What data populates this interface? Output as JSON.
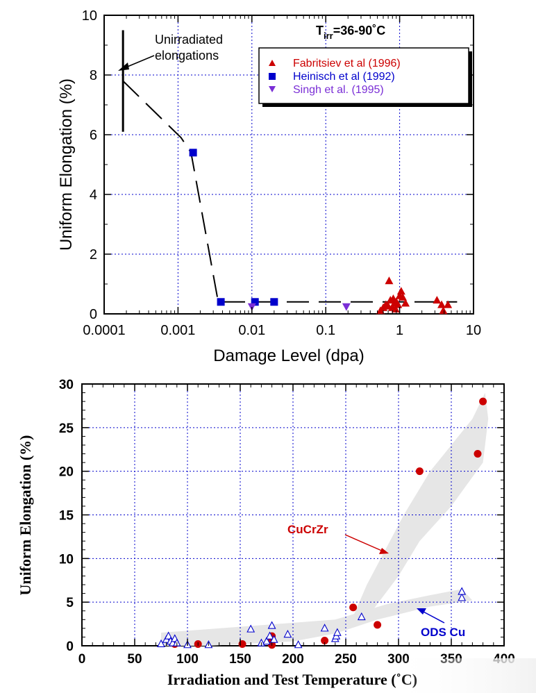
{
  "chart_data": [
    {
      "type": "scatter",
      "title": "",
      "condition_label": {
        "T": "T",
        "sub": "irr",
        "rest": "=36-90˚C"
      },
      "xlabel": "Damage Level (dpa)",
      "ylabel": "Uniform Elongation (%)",
      "x_scale": "log",
      "xlim": [
        0.0001,
        10
      ],
      "ylim": [
        0,
        10
      ],
      "x_ticks": [
        0.0001,
        0.001,
        0.01,
        0.1,
        1,
        10
      ],
      "x_tick_labels": [
        "0.0001",
        "0.001",
        "0.01",
        "0.1",
        "1",
        "10"
      ],
      "y_ticks": [
        0,
        2,
        4,
        6,
        8,
        10
      ],
      "y_tick_labels": [
        "0",
        "2",
        "4",
        "6",
        "8",
        "10"
      ],
      "grid": true,
      "legend_position": "top-right",
      "annotation": {
        "text_line1": "Unirradiated",
        "text_line2": "elongations",
        "arrow_to": [
          0.00018,
          8.1
        ]
      },
      "unirradiated_range": {
        "x": 0.00018,
        "y_min": 6.1,
        "y_max": 9.5
      },
      "trend_line": [
        [
          0.00018,
          7.8
        ],
        [
          0.0011,
          5.9
        ],
        [
          0.0015,
          5.4
        ],
        [
          0.0035,
          0.4
        ],
        [
          6,
          0.4
        ]
      ],
      "series": [
        {
          "name": "Fabritsiev et al (1996)",
          "marker": "triangle-up",
          "color": "#cc0000",
          "points": [
            [
              0.55,
              0.1
            ],
            [
              0.6,
              0.2
            ],
            [
              0.65,
              0.3
            ],
            [
              0.7,
              0.25
            ],
            [
              0.72,
              1.1
            ],
            [
              0.75,
              0.45
            ],
            [
              0.8,
              0.2
            ],
            [
              0.82,
              0.5
            ],
            [
              0.85,
              0.35
            ],
            [
              0.88,
              0.15
            ],
            [
              0.9,
              0.4
            ],
            [
              0.95,
              0.3
            ],
            [
              1.0,
              0.6
            ],
            [
              1.05,
              0.75
            ],
            [
              1.1,
              0.55
            ],
            [
              1.2,
              0.35
            ],
            [
              3.2,
              0.45
            ],
            [
              3.7,
              0.3
            ],
            [
              3.9,
              0.1
            ],
            [
              4.5,
              0.3
            ]
          ]
        },
        {
          "name": "Heinisch et al (1992)",
          "marker": "square",
          "color": "#0000cc",
          "points": [
            [
              0.0016,
              5.4
            ],
            [
              0.0038,
              0.4
            ],
            [
              0.011,
              0.4
            ],
            [
              0.02,
              0.4
            ]
          ]
        },
        {
          "name": "Singh et al. (1995)",
          "marker": "triangle-down",
          "color": "#7a2ed6",
          "points": [
            [
              0.01,
              0.25
            ],
            [
              0.19,
              0.25
            ]
          ]
        }
      ]
    },
    {
      "type": "scatter",
      "title": "",
      "xlabel": "Irradiation and Test Temperature (˚C)",
      "ylabel": "Uniform Elongation (%)",
      "xlim": [
        0,
        400
      ],
      "ylim": [
        0,
        30
      ],
      "x_ticks": [
        0,
        50,
        100,
        150,
        200,
        250,
        300,
        350,
        400
      ],
      "x_tick_labels": [
        "0",
        "50",
        "100",
        "150",
        "200",
        "250",
        "300",
        "350",
        "400"
      ],
      "y_ticks": [
        0,
        5,
        10,
        15,
        20,
        25,
        30
      ],
      "y_tick_labels": [
        "0",
        "5",
        "10",
        "15",
        "20",
        "25",
        "30"
      ],
      "grid": true,
      "labels": [
        {
          "text": "CuCrZr",
          "color": "#cc0000",
          "arrow_to": [
            300,
            7.5
          ]
        },
        {
          "text": "ODS  Cu",
          "color": "#0000cc",
          "arrow_to": [
            296,
            4.6
          ]
        }
      ],
      "bands": [
        {
          "name": "CuCrZr",
          "color": "#e6e6e6",
          "polygon": [
            [
              255,
              2.8
            ],
            [
              270,
              7
            ],
            [
              305,
              15
            ],
            [
              330,
              20
            ],
            [
              370,
              26
            ],
            [
              382,
              29
            ],
            [
              385,
              26
            ],
            [
              380,
              21
            ],
            [
              350,
              16
            ],
            [
              320,
              12
            ],
            [
              300,
              8
            ],
            [
              275,
              4
            ],
            [
              262,
              2.8
            ]
          ]
        },
        {
          "name": "ODS Cu",
          "color": "#e6e6e6",
          "polygon": [
            [
              75,
              0
            ],
            [
              75,
              1.5
            ],
            [
              240,
              3.0
            ],
            [
              290,
              4.8
            ],
            [
              330,
              5.8
            ],
            [
              360,
              6.5
            ],
            [
              370,
              5.2
            ],
            [
              330,
              4.5
            ],
            [
              280,
              3.0
            ],
            [
              240,
              1.4
            ],
            [
              200,
              0.5
            ],
            [
              120,
              0
            ],
            [
              90,
              0
            ]
          ]
        }
      ],
      "series": [
        {
          "name": "CuCrZr",
          "marker": "circle",
          "color": "#cc0000",
          "points": [
            [
              88,
              0.2
            ],
            [
              110,
              0.2
            ],
            [
              152,
              0.2
            ],
            [
              180,
              0.1
            ],
            [
              180,
              0.5
            ],
            [
              180,
              0.8
            ],
            [
              180,
              1.1
            ],
            [
              230,
              0.6
            ],
            [
              257,
              4.4
            ],
            [
              280,
              2.4
            ],
            [
              320,
              20
            ],
            [
              375,
              22
            ],
            [
              380,
              28
            ]
          ]
        },
        {
          "name": "ODS Cu",
          "marker": "triangle-up-open",
          "color": "#0000cc",
          "points": [
            [
              75,
              0.2
            ],
            [
              80,
              0.7
            ],
            [
              82,
              1.1
            ],
            [
              84,
              0.5
            ],
            [
              86,
              0.3
            ],
            [
              88,
              0.8
            ],
            [
              90,
              0.3
            ],
            [
              100,
              0.1
            ],
            [
              120,
              0.1
            ],
            [
              160,
              1.9
            ],
            [
              170,
              0.3
            ],
            [
              175,
              0.5
            ],
            [
              178,
              1.1
            ],
            [
              180,
              2.3
            ],
            [
              182,
              0.7
            ],
            [
              195,
              1.3
            ],
            [
              205,
              0.1
            ],
            [
              230,
              2.0
            ],
            [
              240,
              0.8
            ],
            [
              241,
              1.1
            ],
            [
              242,
              1.5
            ],
            [
              265,
              3.3
            ],
            [
              360,
              5.5
            ],
            [
              360,
              6.2
            ]
          ]
        }
      ]
    }
  ]
}
